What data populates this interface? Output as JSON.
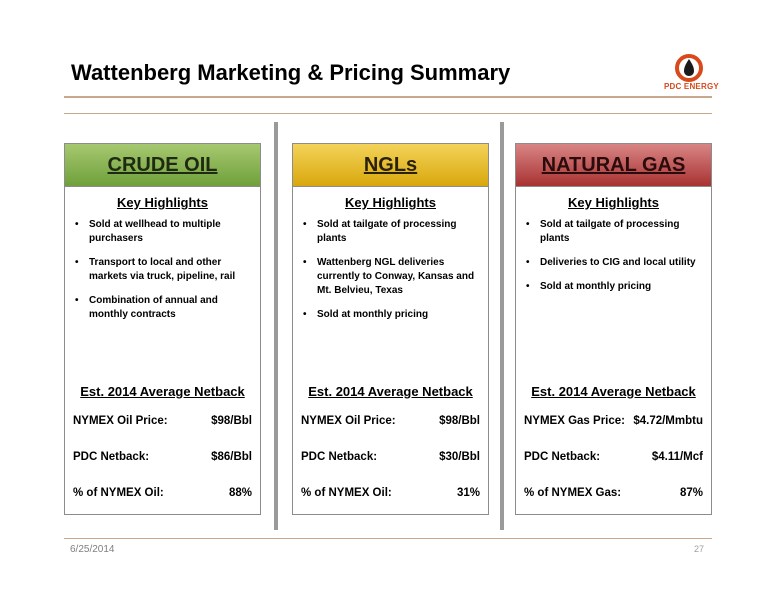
{
  "header": {
    "title": "Wattenberg Marketing & Pricing Summary",
    "logo_text": "PDC ENERGY",
    "logo_color": "#d8491b"
  },
  "panels": [
    {
      "heading": "CRUDE OIL",
      "accent": "#6fa03a",
      "highlights_title": "Key Highlights",
      "bullets": [
        "Sold at wellhead to multiple purchasers",
        "Transport to local and other markets via truck, pipeline, rail",
        "Combination of annual and monthly contracts"
      ],
      "netback_title": "Est. 2014 Average Netback",
      "rows": [
        {
          "label": "NYMEX Oil Price:",
          "value": "$98/Bbl"
        },
        {
          "label": "PDC Netback:",
          "value": "$86/Bbl"
        },
        {
          "label": "% of NYMEX Oil:",
          "value": "88%"
        }
      ]
    },
    {
      "heading": "NGLs",
      "accent": "#d8a70c",
      "highlights_title": "Key Highlights",
      "bullets": [
        "Sold at tailgate of processing plants",
        "Wattenberg NGL deliveries currently to Conway, Kansas and Mt. Belvieu, Texas",
        "Sold at monthly pricing"
      ],
      "netback_title": "Est. 2014 Average Netback",
      "rows": [
        {
          "label": "NYMEX Oil Price:",
          "value": "$98/Bbl"
        },
        {
          "label": "PDC Netback:",
          "value": "$30/Bbl"
        },
        {
          "label": "% of NYMEX Oil:",
          "value": "31%"
        }
      ]
    },
    {
      "heading": "NATURAL GAS",
      "accent": "#a83232",
      "highlights_title": "Key Highlights",
      "bullets": [
        "Sold at tailgate of processing plants",
        "Deliveries to CIG and local utility",
        "Sold at monthly pricing"
      ],
      "netback_title": "Est. 2014 Average Netback",
      "rows": [
        {
          "label": "NYMEX Gas Price:",
          "value": "$4.72/Mmbtu"
        },
        {
          "label": "PDC Netback:",
          "value": "$4.11/Mcf"
        },
        {
          "label": "% of NYMEX Gas:",
          "value": "87%"
        }
      ]
    }
  ],
  "footer": {
    "date": "6/25/2014",
    "page_number": "27"
  }
}
